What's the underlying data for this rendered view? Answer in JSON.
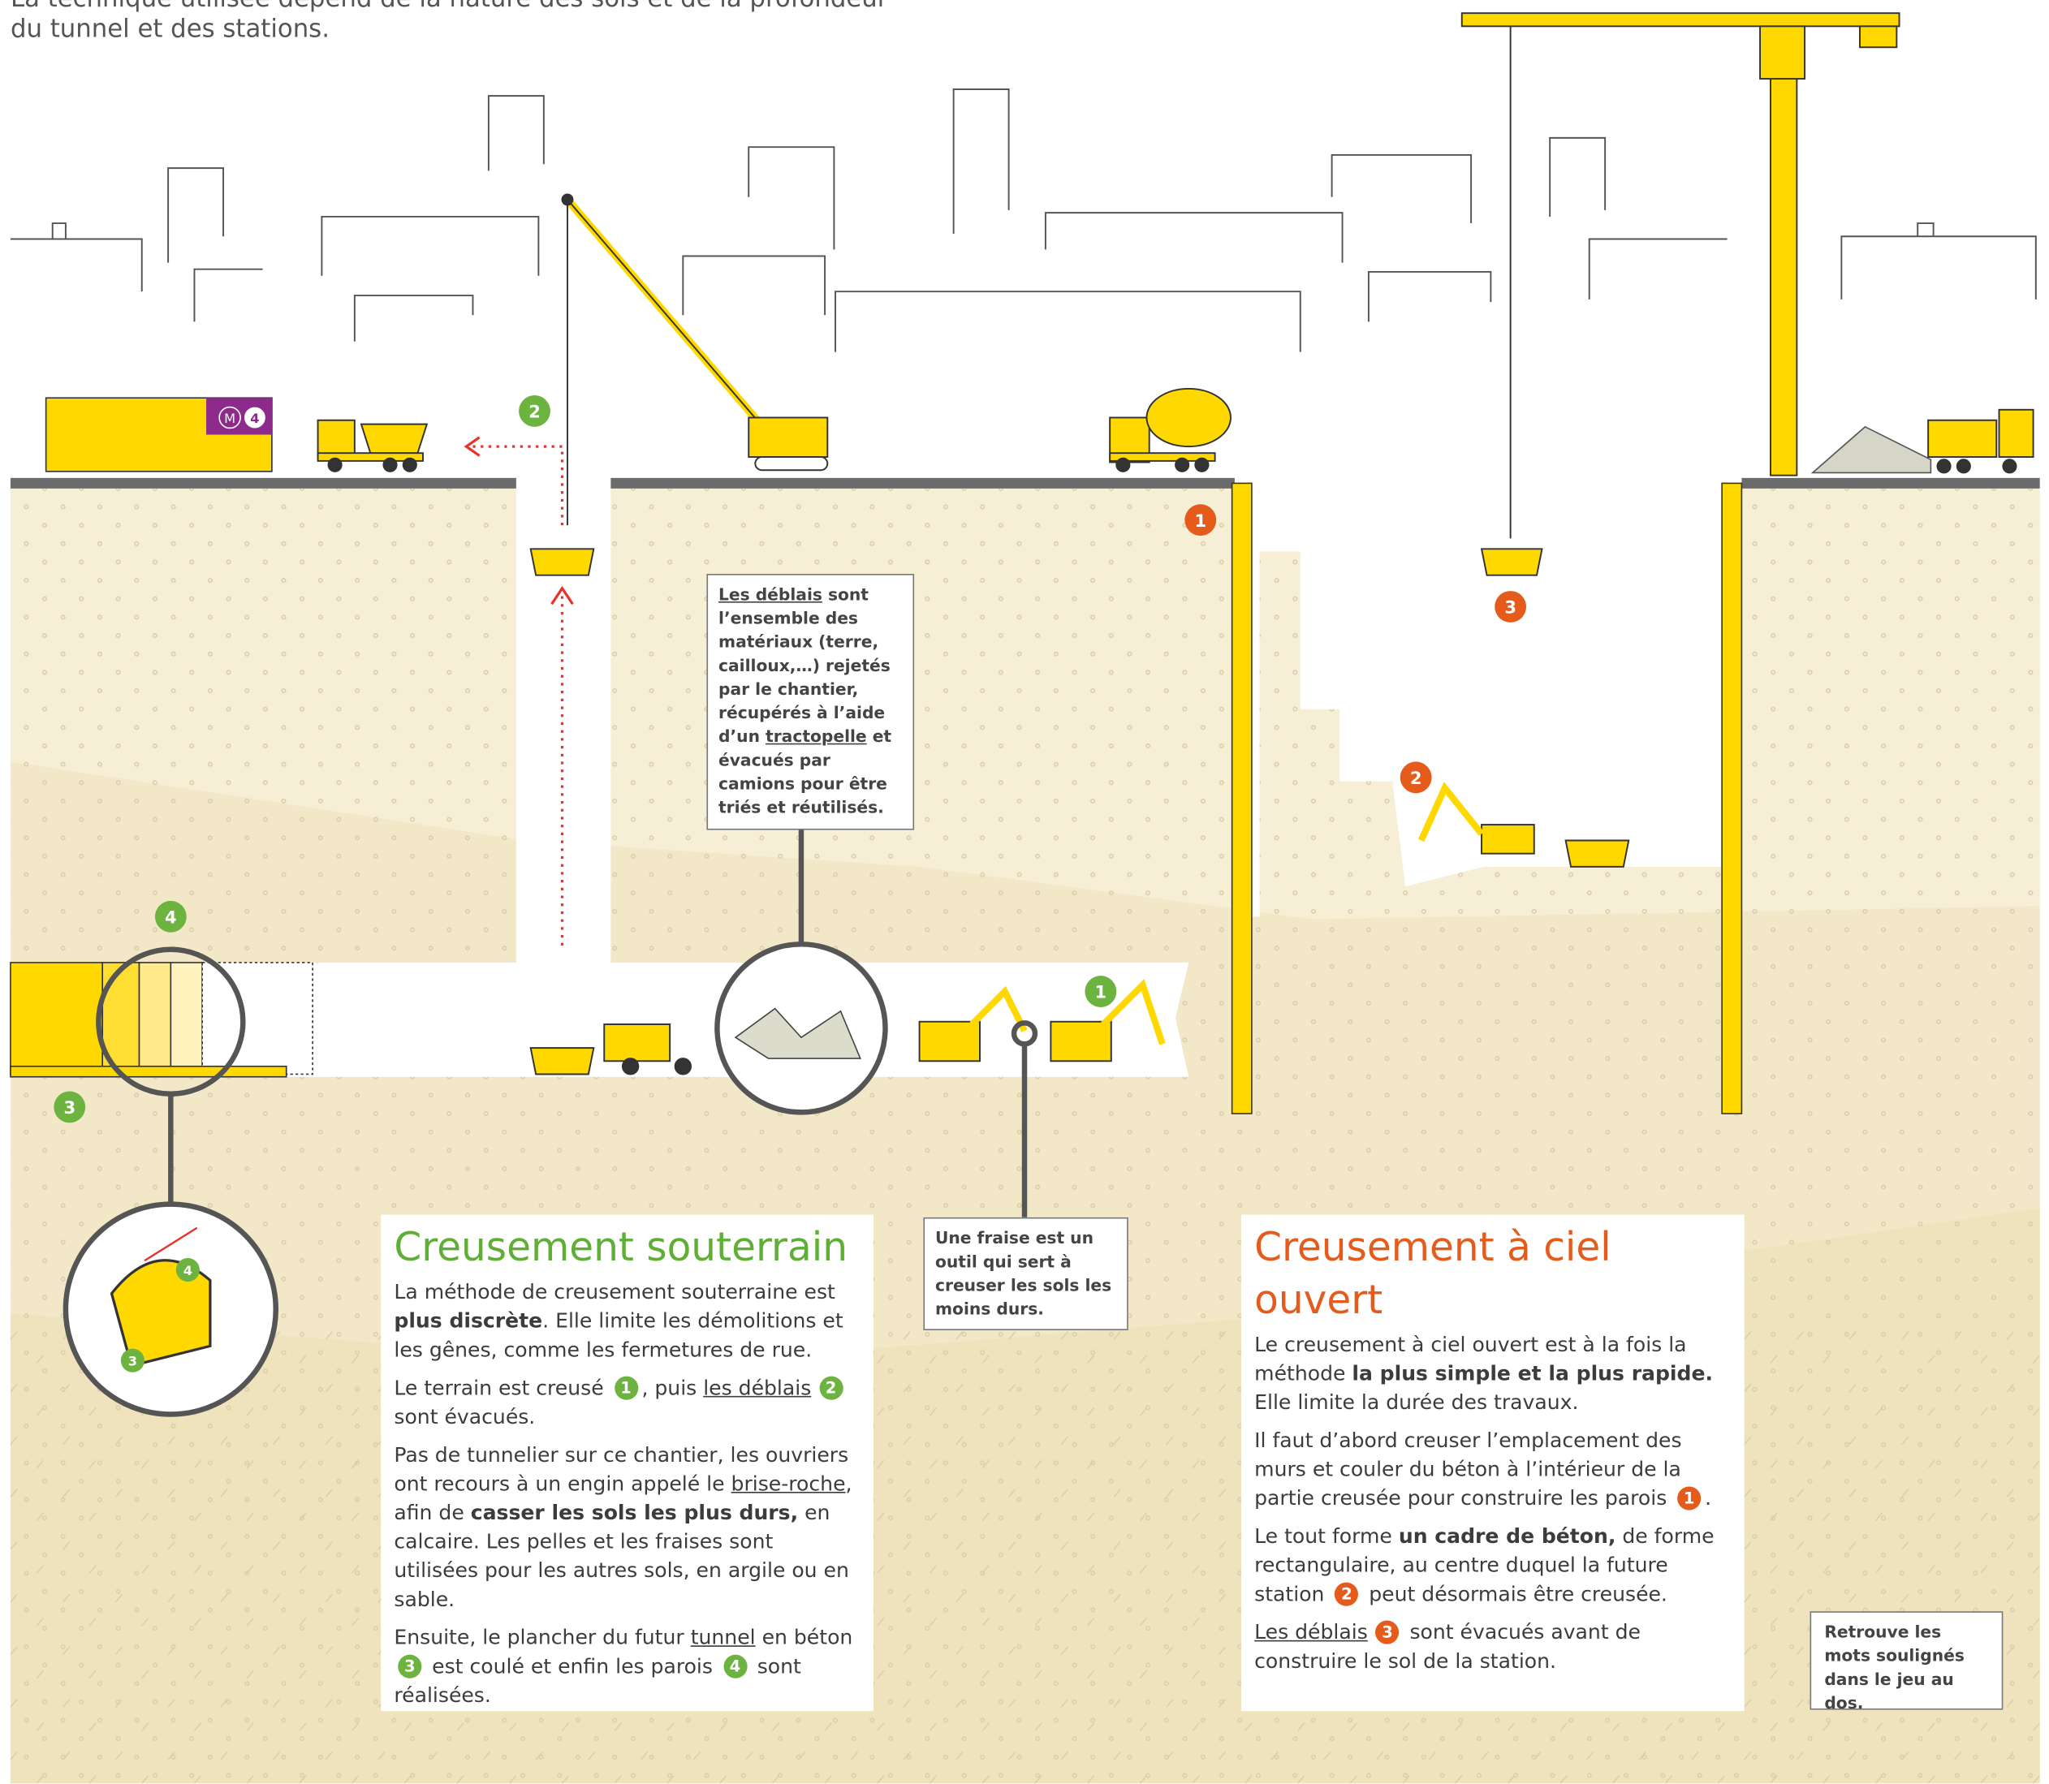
{
  "intro": [
    "La technique utilisée dépend de la nature des sols et de la profondeur",
    "du tunnel et des stations."
  ],
  "metro_sign": {
    "letter": "M",
    "number": "4"
  },
  "diagram_markers": {
    "shaft_deblais": "2",
    "wall": "1",
    "bucket": "3",
    "station": "2",
    "tunnel_walls": "4",
    "tunnel_floor": "3",
    "excavator": "1",
    "detail_walls": "4",
    "detail_floor": "3"
  },
  "deblais_callout": [
    "Les déblais",
    " sont l’ensemble des matériaux (terre, cailloux,…) rejetés par le chantier, récupérés à l’aide d’un ",
    "tractopelle",
    " et évacués par camions pour être triés et réutilisés."
  ],
  "fraise_callout": "Une fraise est un outil qui sert à creuser les sols les moins durs.",
  "underground": {
    "title": "Creusement souterrain",
    "paragraphs": [
      [
        "La méthode de creusement souterraine est ",
        "plus discrète",
        ". Elle limite les démolitions et les gênes, comme les fermetures de rue."
      ],
      [
        "Le terrain est creusé ",
        "1",
        ", puis ",
        "les déblais",
        "2",
        " sont évacués."
      ],
      [
        "Pas de tunnelier sur ce chantier, les ouvriers ont recours à un engin appelé le ",
        "brise-roche",
        ", afin de ",
        "casser les sols les plus durs,",
        " en calcaire. Les pelles et les fraises sont utilisées pour les autres sols, en argile ou en sable."
      ],
      [
        "Ensuite, le plancher du futur ",
        "tunnel",
        " en béton ",
        "3",
        " est coulé et enfin les parois ",
        "4",
        " sont réalisées."
      ]
    ]
  },
  "open_cut": {
    "title": "Creusement à ciel ouvert",
    "paragraphs": [
      [
        "Le creusement à ciel ouvert est à la fois la méthode ",
        "la plus simple et la plus rapide.",
        " Elle limite la durée des travaux."
      ],
      [
        "Il faut d’abord creuser l’emplacement des murs et couler du béton à l’intérieur de la partie creusée pour construire les parois ",
        "1",
        "."
      ],
      [
        "Le tout forme ",
        "un cadre de béton,",
        " de forme rectangulaire, au centre duquel la future station ",
        "2",
        " peut désormais être creusée."
      ],
      [
        "Les déblais",
        "3",
        " sont évacués avant de construire le sol de la station."
      ]
    ]
  },
  "note": "Retrouve les mots soulignés dans le jeu au dos."
}
